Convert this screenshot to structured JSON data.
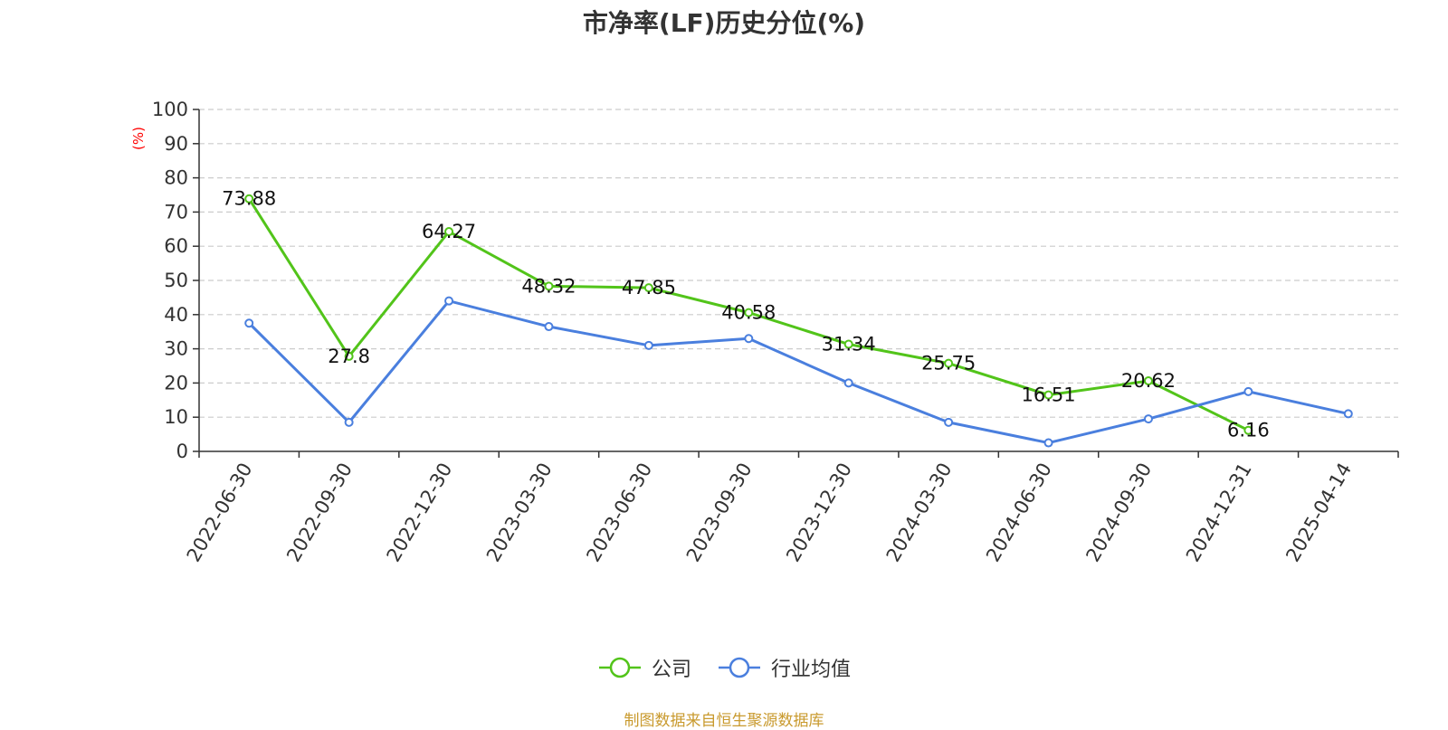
{
  "title": "市净率(LF)历史分位(%)",
  "unit_label": "(%)",
  "source": "制图数据来自恒生聚源数据库",
  "colors": {
    "company": "#52c41a",
    "industry": "#4a7fde",
    "unit_label": "#ff0000",
    "source": "#c99a2e"
  },
  "chart_data": {
    "type": "line",
    "title": "市净率(LF)历史分位(%)",
    "ylabel": "(%)",
    "ylim": [
      0,
      100
    ],
    "yticks": [
      0,
      10,
      20,
      30,
      40,
      50,
      60,
      70,
      80,
      90,
      100
    ],
    "grid": true,
    "legend_position": "bottom",
    "categories": [
      "2022-06-30",
      "2022-09-30",
      "2022-12-30",
      "2023-03-30",
      "2023-06-30",
      "2023-09-30",
      "2023-12-30",
      "2024-03-30",
      "2024-06-30",
      "2024-09-30",
      "2024-12-31",
      "2025-04-14"
    ],
    "series": [
      {
        "name": "公司",
        "color": "#52c41a",
        "labels": true,
        "values": [
          73.88,
          27.8,
          64.27,
          48.32,
          47.85,
          40.58,
          31.34,
          25.75,
          16.51,
          20.62,
          6.16,
          null
        ]
      },
      {
        "name": "行业均值",
        "color": "#4a7fde",
        "labels": false,
        "values": [
          37.5,
          8.5,
          44.0,
          36.5,
          31.0,
          33.0,
          20.0,
          8.5,
          2.5,
          9.5,
          17.5,
          11.0
        ]
      }
    ]
  }
}
